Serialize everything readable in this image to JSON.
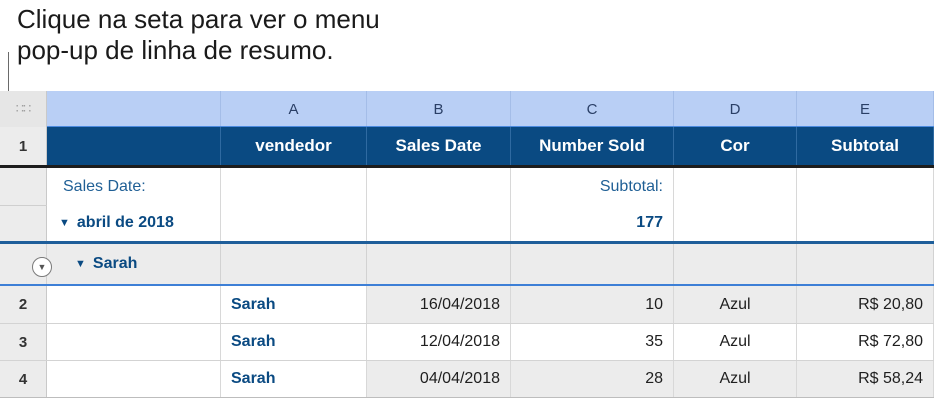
{
  "callout": {
    "line1": "Clique na seta para ver o menu",
    "line2": "pop-up de linha de resumo."
  },
  "column_headers": [
    "A",
    "B",
    "C",
    "D",
    "E"
  ],
  "row_numbers": [
    "1",
    "2",
    "3",
    "4"
  ],
  "header_row": [
    "vendedor",
    "Sales Date",
    "Number Sold",
    "Cor",
    "Subtotal"
  ],
  "summary": {
    "label": "Sales Date:",
    "group_value": "abril de 2018",
    "subtotal_label": "Subtotal:",
    "subtotal_value": "177"
  },
  "group_row": {
    "label": "Sarah"
  },
  "rows": [
    {
      "vendedor": "Sarah",
      "date": "16/04/2018",
      "sold": "10",
      "cor": "Azul",
      "subtotal": "R$ 20,80"
    },
    {
      "vendedor": "Sarah",
      "date": "12/04/2018",
      "sold": "35",
      "cor": "Azul",
      "subtotal": "R$ 72,80"
    },
    {
      "vendedor": "Sarah",
      "date": "04/04/2018",
      "sold": "28",
      "cor": "Azul",
      "subtotal": "R$ 58,24"
    }
  ],
  "icons": {
    "grip": "grid-grip-icon",
    "disclosure": "triangle-down-icon",
    "summary_menu": "circle-chevron-down-icon"
  },
  "colors": {
    "header_bg": "#0a4a82",
    "column_header_bg": "#b9cff5",
    "accent_text": "#1f5f95"
  }
}
